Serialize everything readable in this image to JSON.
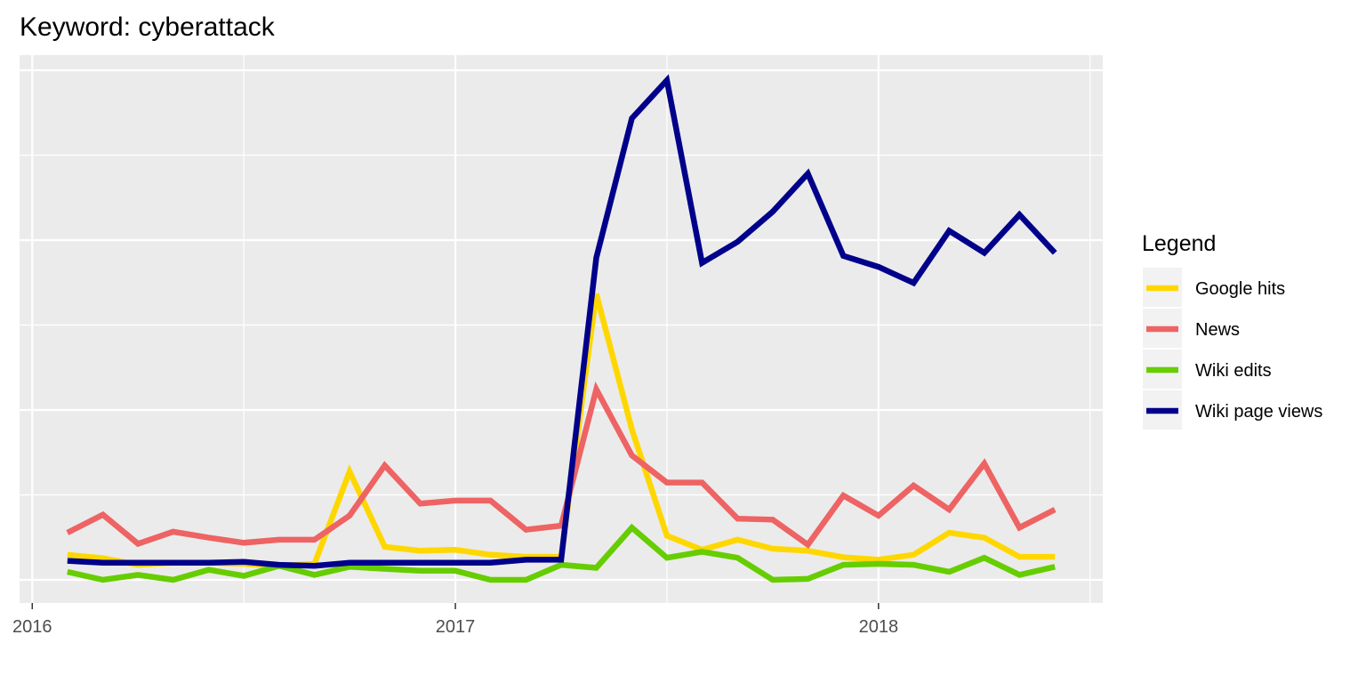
{
  "chart_data": {
    "type": "line",
    "title": "Keyword: cyberattack",
    "xlabel": "",
    "ylabel": "",
    "xlim": [
      2015.97,
      2018.53
    ],
    "ylim": [
      0,
      1.0
    ],
    "x_ticks": [
      {
        "value": 2016,
        "label": "2016"
      },
      {
        "value": 2017,
        "label": "2017"
      },
      {
        "value": 2018,
        "label": "2018"
      }
    ],
    "y_tick_labels_shown": false,
    "grid": true,
    "legend": {
      "title": "Legend",
      "position": "right"
    },
    "x": [
      2016.083,
      2016.167,
      2016.25,
      2016.333,
      2016.417,
      2016.5,
      2016.583,
      2016.667,
      2016.75,
      2016.833,
      2016.917,
      2017.0,
      2017.083,
      2017.167,
      2017.25,
      2017.333,
      2017.417,
      2017.5,
      2017.583,
      2017.667,
      2017.75,
      2017.833,
      2017.917,
      2018.0,
      2018.083,
      2018.167,
      2018.25,
      2018.333,
      2018.417
    ],
    "series": [
      {
        "name": "Google hits",
        "color": "#FFD700",
        "values": [
          0.05,
          0.043,
          0.03,
          0.034,
          0.034,
          0.032,
          0.028,
          0.032,
          0.216,
          0.066,
          0.058,
          0.06,
          0.05,
          0.046,
          0.046,
          0.57,
          0.3,
          0.088,
          0.06,
          0.08,
          0.062,
          0.058,
          0.045,
          0.04,
          0.05,
          0.094,
          0.084,
          0.046,
          0.046
        ]
      },
      {
        "name": "News",
        "color": "#EE6363",
        "values": [
          0.094,
          0.13,
          0.072,
          0.096,
          0.084,
          0.074,
          0.08,
          0.08,
          0.128,
          0.228,
          0.152,
          0.158,
          0.158,
          0.1,
          0.108,
          0.38,
          0.248,
          0.194,
          0.194,
          0.122,
          0.12,
          0.07,
          0.168,
          0.128,
          0.188,
          0.14,
          0.232,
          0.104,
          0.14
        ]
      },
      {
        "name": "Wiki edits",
        "color": "#66CD00",
        "values": [
          0.016,
          0.0,
          0.01,
          0.0,
          0.02,
          0.008,
          0.028,
          0.01,
          0.026,
          0.022,
          0.018,
          0.018,
          0.0,
          0.0,
          0.03,
          0.024,
          0.104,
          0.044,
          0.056,
          0.044,
          0.0,
          0.002,
          0.03,
          0.032,
          0.03,
          0.016,
          0.044,
          0.01,
          0.026
        ]
      },
      {
        "name": "Wiki page views",
        "color": "#00008B",
        "values": [
          0.038,
          0.034,
          0.034,
          0.034,
          0.034,
          0.036,
          0.03,
          0.028,
          0.034,
          0.034,
          0.034,
          0.034,
          0.034,
          0.04,
          0.04,
          0.642,
          0.92,
          0.996,
          0.632,
          0.674,
          0.734,
          0.81,
          0.646,
          0.624,
          0.592,
          0.696,
          0.652,
          0.728,
          0.652
        ]
      }
    ]
  }
}
